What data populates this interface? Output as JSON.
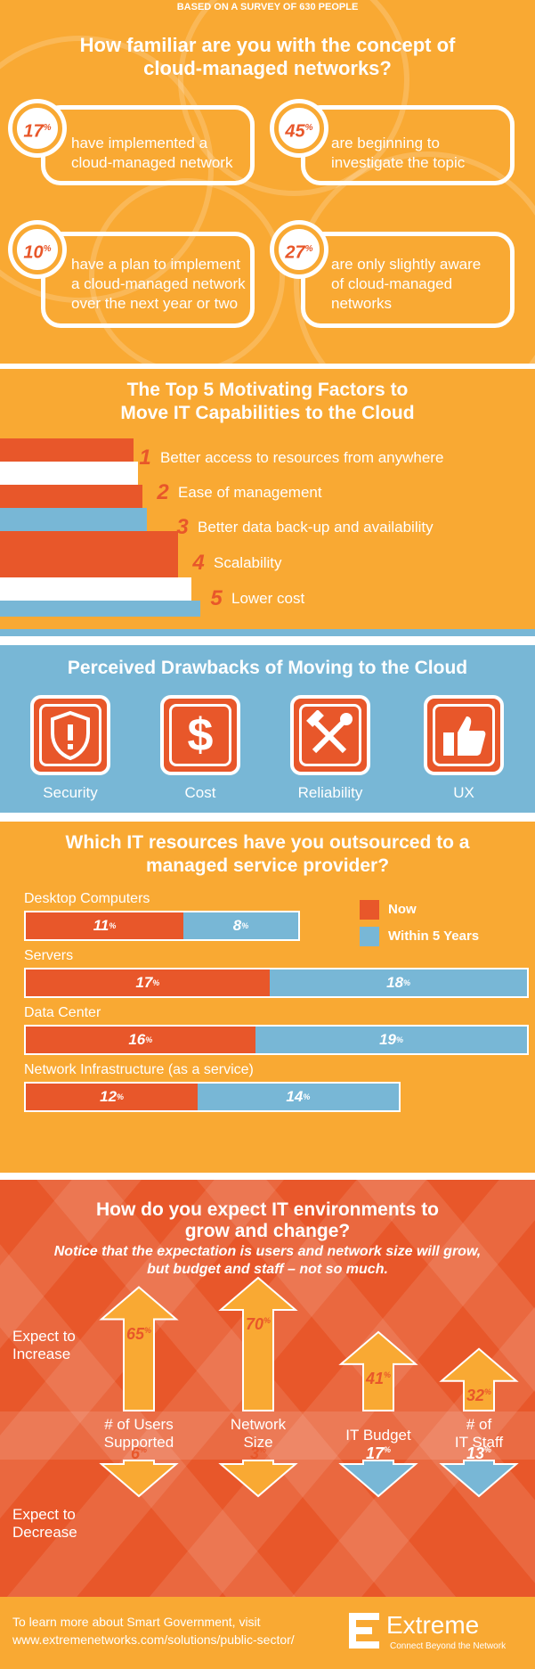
{
  "survey_banner": "BASED ON A SURVEY OF 630 PEOPLE",
  "familiarity": {
    "title_line1": "How familiar are you with the concept of",
    "title_line2": "cloud-managed networks?",
    "stats": [
      {
        "pct": "17",
        "line1": "have implemented a",
        "line2": "cloud-managed network",
        "line3": ""
      },
      {
        "pct": "45",
        "line1": "are beginning to",
        "line2": "investigate the topic",
        "line3": ""
      },
      {
        "pct": "10",
        "line1": "have a plan to implement",
        "line2": "a cloud-managed network",
        "line3": "over the next year or two"
      },
      {
        "pct": "27",
        "line1": "are only slightly aware",
        "line2": "of cloud-managed",
        "line3": "networks"
      }
    ],
    "pct_symbol": "%"
  },
  "motivators": {
    "title_line1": "The Top 5 Motivating Factors to",
    "title_line2": "Move IT Capabilities to the Cloud",
    "items": [
      {
        "num": "1",
        "label": "Better access to resources from anywhere"
      },
      {
        "num": "2",
        "label": "Ease of management"
      },
      {
        "num": "3",
        "label": "Better data back-up and availability"
      },
      {
        "num": "4",
        "label": "Scalability"
      },
      {
        "num": "5",
        "label": "Lower cost"
      }
    ]
  },
  "drawbacks": {
    "title": "Perceived Drawbacks of Moving to the Cloud",
    "items": [
      {
        "label": "Security",
        "icon": "shield-icon"
      },
      {
        "label": "Cost",
        "icon": "dollar-icon"
      },
      {
        "label": "Reliability",
        "icon": "tools-icon"
      },
      {
        "label": "UX",
        "icon": "thumbs-up-icon"
      }
    ]
  },
  "outsourced": {
    "title_line1": "Which IT resources have you outsourced to a",
    "title_line2": "managed service provider?",
    "legend": {
      "now": "Now",
      "future": "Within 5 Years"
    },
    "rows": [
      {
        "label": "Desktop Computers",
        "now": 11,
        "future": 8
      },
      {
        "label": "Servers",
        "now": 17,
        "future": 18
      },
      {
        "label": "Data Center",
        "now": 16,
        "future": 19
      },
      {
        "label": "Network Infrastructure (as a service)",
        "now": 12,
        "future": 14
      }
    ]
  },
  "growth": {
    "title_line1": "How do you expect IT environments to",
    "title_line2": "grow and change?",
    "note_line1": "Notice that the expectation is users and network size will grow,",
    "note_line2": "but budget and staff – not so much.",
    "increase_label_1": "Expect to",
    "increase_label_2": "Increase",
    "decrease_label_1": "Expect to",
    "decrease_label_2": "Decrease",
    "columns": [
      {
        "label1": "# of Users",
        "label2": "Supported",
        "increase": "65",
        "decrease": "6"
      },
      {
        "label1": "Network",
        "label2": "Size",
        "increase": "70",
        "decrease": "3"
      },
      {
        "label1": "IT Budget",
        "label2": "",
        "increase": "41",
        "decrease": "17"
      },
      {
        "label1": "# of",
        "label2": "IT Staff",
        "increase": "32",
        "decrease": "13"
      }
    ]
  },
  "footer": {
    "line1": "To learn more about Smart Government, visit",
    "line2": "www.extremenetworks.com/solutions/public-sector/",
    "brand": "Extreme",
    "tagline": "Connect Beyond the Network"
  },
  "colors": {
    "orange": "#f9a933",
    "red": "#e8572a",
    "blue": "#78b7d6",
    "white": "#ffffff"
  }
}
